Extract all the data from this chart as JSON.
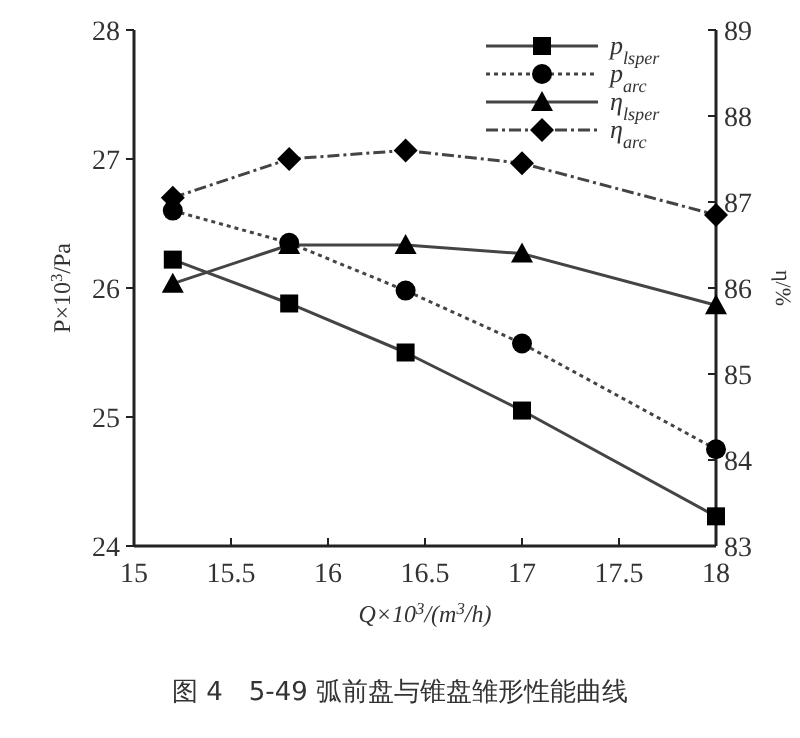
{
  "chart_data": {
    "type": "line",
    "xlabel": "Q×10$^{3}$/(m$^{3}$/h)",
    "ylabel": "P×10$^{3}$/Pa",
    "y2label": "η/%",
    "x": [
      15.2,
      15.8,
      16.4,
      17,
      18
    ],
    "xlim": [
      15,
      18
    ],
    "xticks": [
      15,
      15.5,
      16,
      16.5,
      17,
      17.5,
      18
    ],
    "ylim": [
      24,
      28
    ],
    "yticks": [
      24,
      25,
      26,
      27,
      28
    ],
    "y2lim": [
      83,
      89
    ],
    "y2ticks": [
      83,
      84,
      85,
      86,
      87,
      88,
      89
    ],
    "legend": "top right",
    "grid": false,
    "series": [
      {
        "name": "p$_{lsper}$",
        "color": "#444444",
        "marker": "square",
        "line_style": "solid",
        "values": [
          26.22,
          25.88,
          25.5,
          25.05,
          24.23
        ]
      },
      {
        "name": "p$_{arc}$",
        "color": "#444444",
        "marker": "circle",
        "line_style": "dotted",
        "values": [
          26.6,
          26.35,
          25.98,
          25.57,
          24.75
        ]
      },
      {
        "name": "η$_{lsper}$",
        "color": "#444444",
        "marker": "triangle",
        "line_style": "solid",
        "axis": "y2",
        "values": [
          86.05,
          86.5,
          86.5,
          86.4,
          85.8
        ]
      },
      {
        "name": "η$_{arc}$",
        "color": "#444444",
        "marker": "diamond",
        "line_style": "dashed",
        "axis": "y2",
        "values": [
          87.05,
          87.5,
          87.6,
          87.45,
          86.85
        ]
      }
    ],
    "annotations": [
      "图 4　5-49 弧前盘与锥盘雏形性能曲线"
    ]
  }
}
